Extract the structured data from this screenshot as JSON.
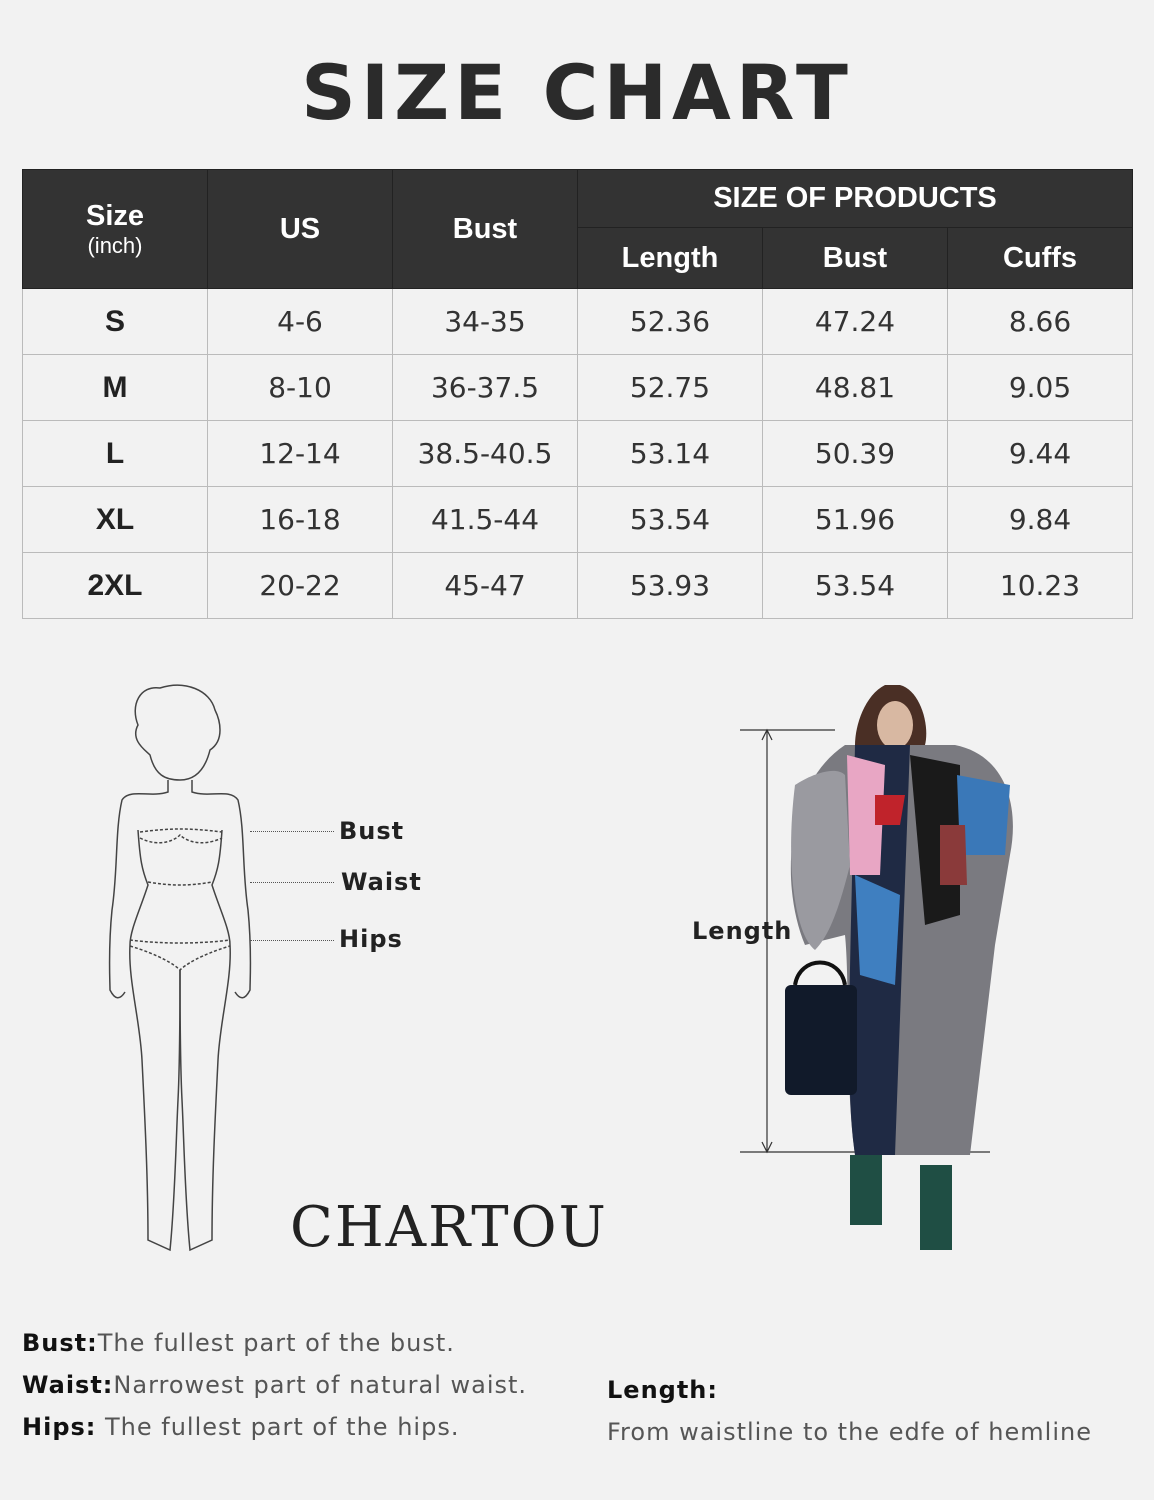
{
  "title": "SIZE CHART",
  "table": {
    "headers": {
      "size": "Size",
      "size_unit": "(inch)",
      "us": "US",
      "bust": "Bust",
      "group": "SIZE OF PRODUCTS",
      "length": "Length",
      "product_bust": "Bust",
      "cuffs": "Cuffs"
    },
    "rows": [
      [
        "S",
        "4-6",
        "34-35",
        "52.36",
        "47.24",
        "8.66"
      ],
      [
        "M",
        "8-10",
        "36-37.5",
        "52.75",
        "48.81",
        "9.05"
      ],
      [
        "L",
        "12-14",
        "38.5-40.5",
        "53.14",
        "50.39",
        "9.44"
      ],
      [
        "XL",
        "16-18",
        "41.5-44",
        "53.54",
        "51.96",
        "9.84"
      ],
      [
        "2XL",
        "20-22",
        "45-47",
        "53.93",
        "53.54",
        "10.23"
      ]
    ]
  },
  "figure": {
    "bust": "Bust",
    "waist": "Waist",
    "hips": "Hips",
    "length": "Length",
    "logo": "CHARTOU"
  },
  "notes": {
    "bust_term": "Bust:",
    "bust_text": "The fullest part of the bust.",
    "waist_term": "Waist:",
    "waist_text": "Narrowest part of natural waist.",
    "hips_term": "Hips:",
    "hips_text": " The fullest part of the hips.",
    "length_term": "Length:",
    "length_text": "From waistline to the edfe of hemline"
  },
  "colors": {
    "header_bg": "#333333",
    "background": "#f2f2f2"
  }
}
